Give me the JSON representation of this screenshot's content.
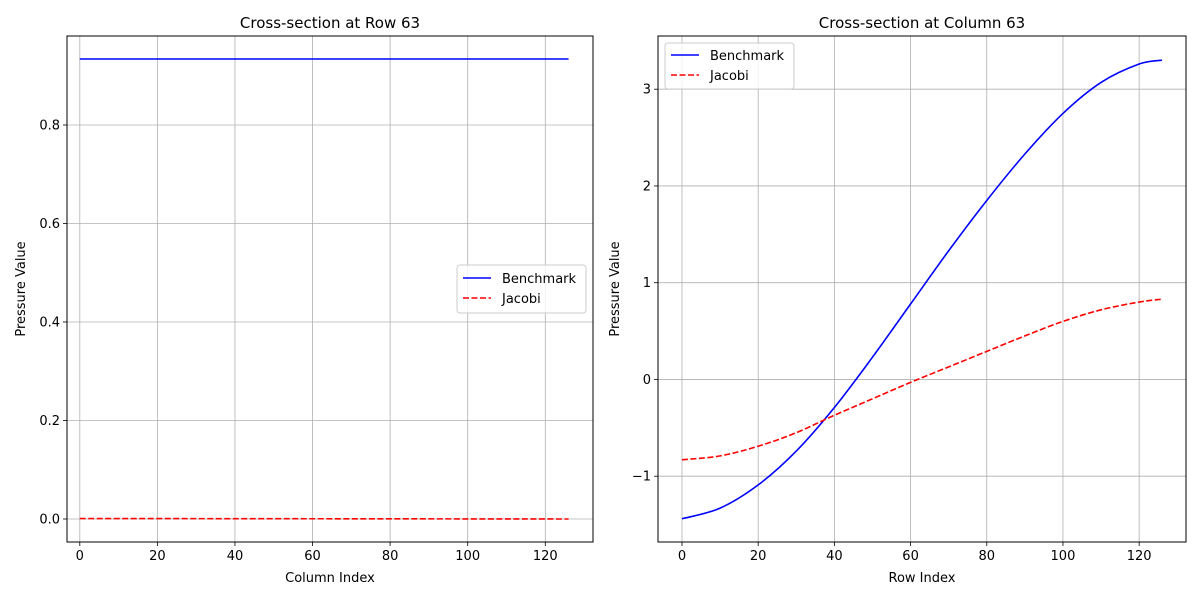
{
  "chart_data": [
    {
      "type": "line",
      "title": "Cross-section at Row 63",
      "xlabel": "Column Index",
      "ylabel": "Pressure Value",
      "xlim": [
        -3.3,
        132.3
      ],
      "ylim": [
        -0.0467,
        0.9807
      ],
      "xticks": [
        0,
        20,
        40,
        60,
        80,
        100,
        120
      ],
      "yticks": [
        0.0,
        0.2,
        0.4,
        0.6,
        0.8
      ],
      "xtick_labels": [
        "0",
        "20",
        "40",
        "60",
        "80",
        "100",
        "120"
      ],
      "ytick_labels": [
        "0.0",
        "0.2",
        "0.4",
        "0.6",
        "0.8"
      ],
      "grid": true,
      "legend_position": "center-right",
      "series": [
        {
          "name": "Benchmark",
          "color": "#0000ff",
          "style": "solid",
          "x": [
            0,
            126
          ],
          "y": [
            0.934,
            0.934
          ]
        },
        {
          "name": "Jacobi",
          "color": "#ff0000",
          "style": "dashed",
          "x": [
            0,
            126
          ],
          "y": [
            0.001,
            0.0
          ]
        }
      ]
    },
    {
      "type": "line",
      "title": "Cross-section at Column 63",
      "xlabel": "Row Index",
      "ylabel": "Pressure Value",
      "xlim": [
        -6.3,
        132.3
      ],
      "ylim": [
        -1.68,
        3.55
      ],
      "xticks": [
        0,
        20,
        40,
        60,
        80,
        100,
        120
      ],
      "yticks": [
        -1,
        0,
        1,
        2,
        3
      ],
      "xtick_labels": [
        "0",
        "20",
        "40",
        "60",
        "80",
        "100",
        "120"
      ],
      "ytick_labels": [
        "−1",
        "0",
        "1",
        "2",
        "3"
      ],
      "grid": true,
      "legend_position": "top-left",
      "series": [
        {
          "name": "Benchmark",
          "color": "#0000ff",
          "style": "solid",
          "x": [
            0,
            10,
            20,
            30,
            40,
            50,
            60,
            70,
            80,
            90,
            100,
            110,
            120,
            126
          ],
          "y": [
            -1.44,
            -1.33,
            -1.09,
            -0.74,
            -0.29,
            0.23,
            0.78,
            1.33,
            1.85,
            2.33,
            2.75,
            3.07,
            3.26,
            3.3
          ]
        },
        {
          "name": "Jacobi",
          "color": "#ff0000",
          "style": "dashed",
          "x": [
            0,
            10,
            20,
            30,
            40,
            50,
            60,
            70,
            80,
            90,
            100,
            110,
            120,
            126
          ],
          "y": [
            -0.83,
            -0.79,
            -0.69,
            -0.55,
            -0.37,
            -0.2,
            -0.03,
            0.13,
            0.29,
            0.45,
            0.6,
            0.72,
            0.8,
            0.83
          ]
        }
      ]
    }
  ]
}
